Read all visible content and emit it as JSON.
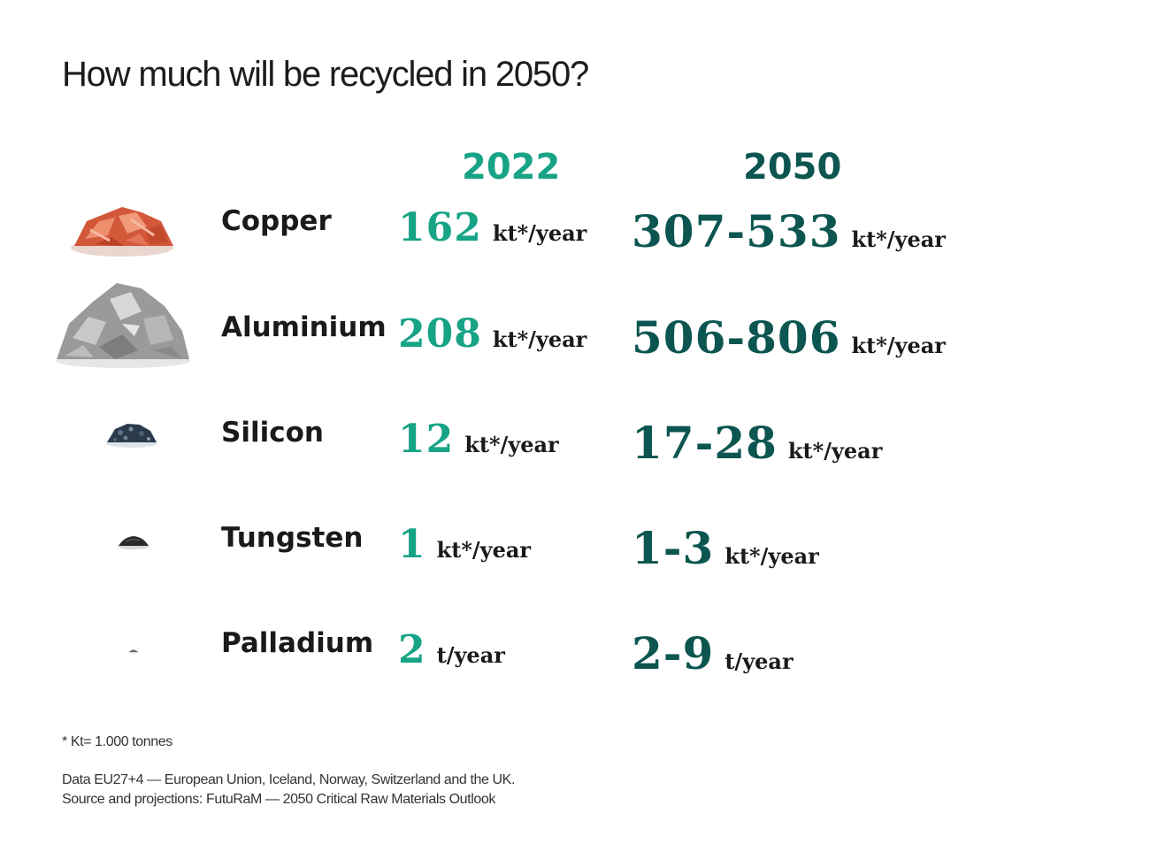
{
  "title": "How much will be recycled in 2050?",
  "columns": {
    "year_a": "2022",
    "year_b": "2050"
  },
  "colors": {
    "accent_2022": "#17a386",
    "accent_2050": "#0c5550",
    "text": "#1a1a1a"
  },
  "rows": [
    {
      "name": "Copper",
      "v2022": "162",
      "u2022": "kt*/year",
      "v2050": "307-533",
      "u2050": "kt*/year",
      "icon": "copper-pile-icon"
    },
    {
      "name": "Aluminium",
      "v2022": "208",
      "u2022": "kt*/year",
      "v2050": "506-806",
      "u2050": "kt*/year",
      "icon": "aluminium-pile-icon"
    },
    {
      "name": "Silicon",
      "v2022": "12",
      "u2022": "kt*/year",
      "v2050": "17-28",
      "u2050": "kt*/year",
      "icon": "silicon-pile-icon"
    },
    {
      "name": "Tungsten",
      "v2022": "1",
      "u2022": "kt*/year",
      "v2050": "1-3",
      "u2050": "kt*/year",
      "icon": "tungsten-pile-icon"
    },
    {
      "name": "Palladium",
      "v2022": "2",
      "u2022": "t/year",
      "v2050": "2-9",
      "u2050": "t/year",
      "icon": "palladium-pile-icon"
    }
  ],
  "footnote": "* Kt= 1.000 tonnes",
  "source_line1": "Data EU27+4 — European Union, Iceland, Norway, Switzerland and the UK.",
  "source_line2": "Source and projections: FutuRaM — 2050 Critical Raw Materials Outlook"
}
